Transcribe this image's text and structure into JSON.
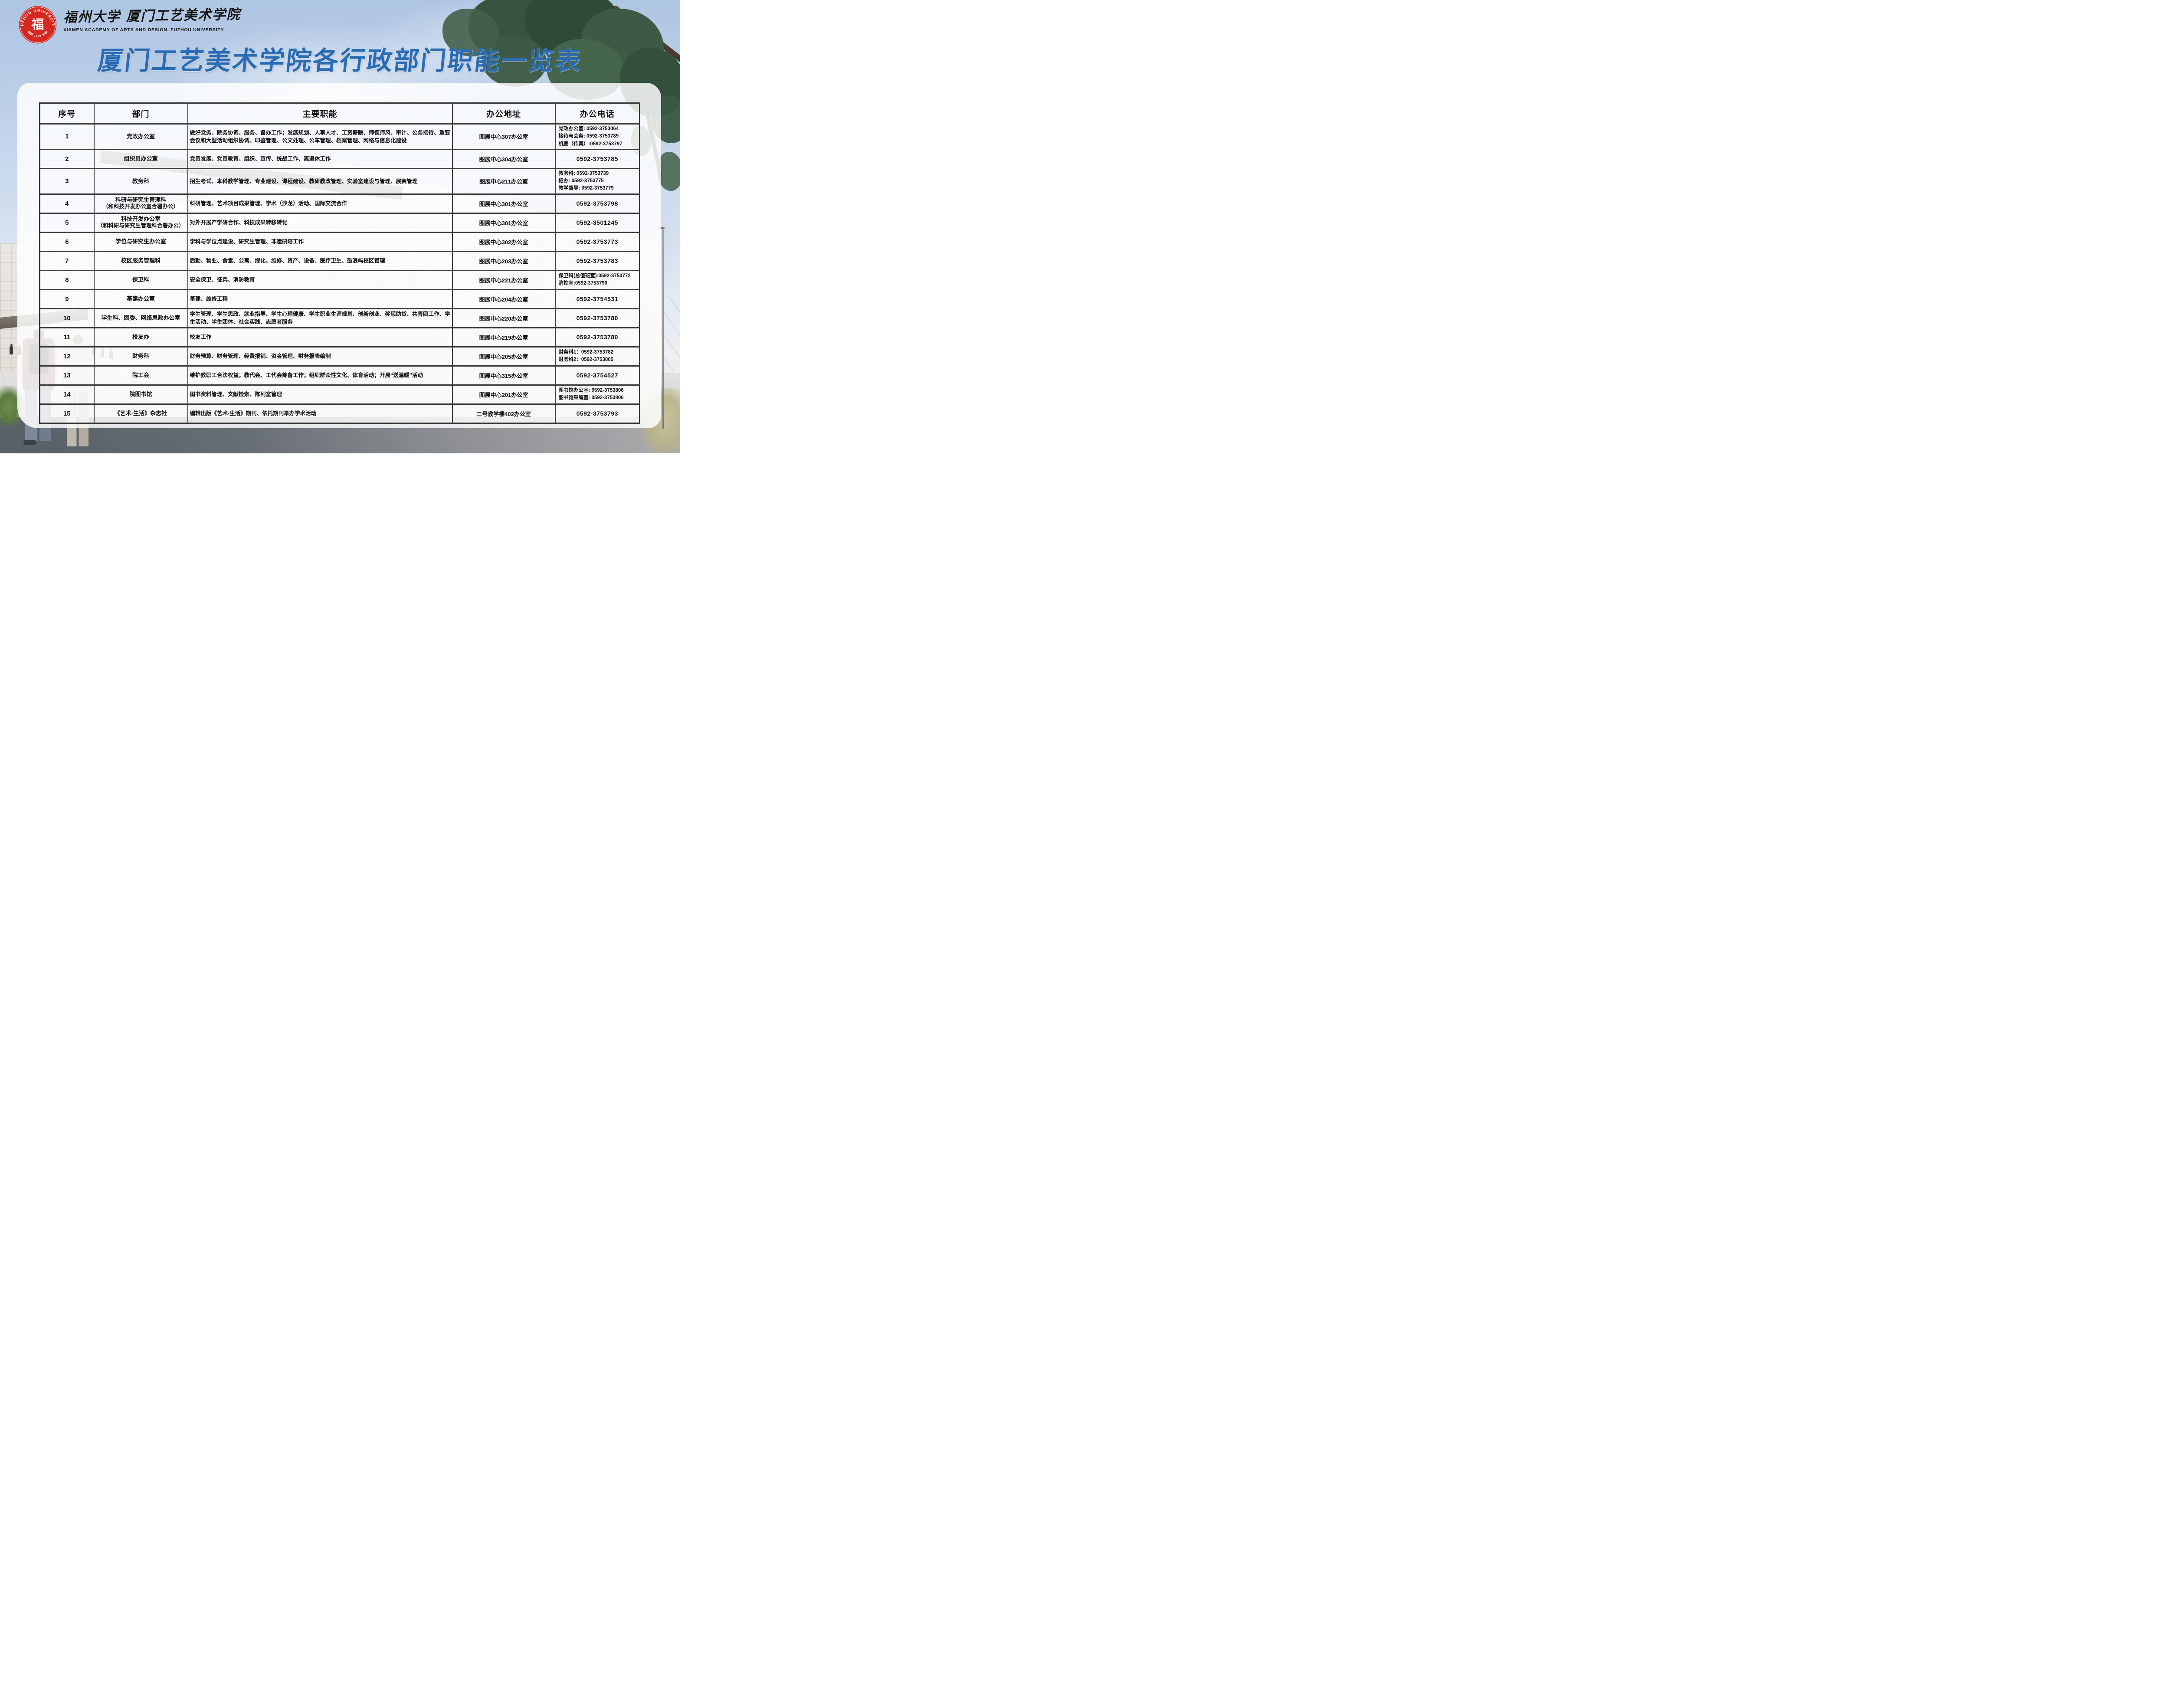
{
  "page": {
    "logo": {
      "seal_top": "FUZHOU UNIVERSITY",
      "seal_char": "福",
      "seal_bottom": "福州 1958 大学",
      "calligraphy": "福州大学 厦门工艺美术学院",
      "english": "XIAMEN ACADEMY OF ARTS AND DESIGN. FUZHOU UNIVERSITY"
    },
    "title": "厦门工艺美术学院各行政部门职能一览表",
    "colors": {
      "title_blue": "#2a6cb4",
      "seal_red": "#d6281f",
      "table_line": "#3a3a3a",
      "sky_blue": "#bccfe8",
      "tree_green": "#38543f"
    }
  },
  "table": {
    "headers": [
      "序号",
      "部门",
      "主要职能",
      "办公地址",
      "办公电话"
    ],
    "rows": [
      {
        "no": "1",
        "dept": "党政办公室",
        "functions": "做好党务、院务协调、服务、督办工作；发展规划、人事人才、工资薪酬、师德师风、审计、公务接待、重要会议和大型活动组织协调、印鉴管理、公文处理、公车管理、档案管理、网络与信息化建设",
        "address": "图展中心307办公室",
        "phones": [
          "党政办公室: 0592-3753064",
          "接待与会务: 0592-3753789",
          "机要（传真）:0592-3753797"
        ]
      },
      {
        "no": "2",
        "dept": "组织员办公室",
        "functions": "党员发展、党员教育、组织、宣传、统战工作、离退休工作",
        "address": "图展中心304办公室",
        "phones": [
          "0592-3753785"
        ]
      },
      {
        "no": "3",
        "dept": "教务科",
        "functions": "招生考试、本科教学管理、专业建设、课程建设、教研教改管理、实验室建设与管理、展赛管理",
        "address": "图展中心211办公室",
        "phones": [
          "教务科: 0592-3753739",
          "招办: 0592-3753775",
          "教学督导: 0592-3753779"
        ]
      },
      {
        "no": "4",
        "dept": "科研与研究生管理科",
        "dept_sub": "（和科技开发办公室合署办公）",
        "functions": "科研管理、艺术项目成果管理、学术（沙龙）活动、国际交流合作",
        "address": "图展中心301办公室",
        "phones": [
          "0592-3753798"
        ]
      },
      {
        "no": "5",
        "dept": "科技开发办公室",
        "dept_sub": "（和科研与研究生管理科合署办公）",
        "functions": "对外开展产学研合作、科技成果转移转化",
        "address": "图展中心301办公室",
        "phones": [
          "0592-3501245"
        ]
      },
      {
        "no": "6",
        "dept": "学位与研究生办公室",
        "functions": "学科与学位点建设、研究生管理、非遗研培工作",
        "address": "图展中心302办公室",
        "phones": [
          "0592-3753773"
        ]
      },
      {
        "no": "7",
        "dept": "校区服务管理科",
        "functions": "后勤、物业、食堂、公寓、绿化、维修、资产、设备、医疗卫生、鼓浪屿校区管理",
        "address": "图展中心203办公室",
        "phones": [
          "0592-3753783"
        ]
      },
      {
        "no": "8",
        "dept": "保卫科",
        "functions": "安全保卫、征兵、消防教育",
        "address": "图展中心221办公室",
        "phones": [
          "保卫科(总值班室):0592-3753772",
          "消控室:0592-3753790"
        ]
      },
      {
        "no": "9",
        "dept": "基建办公室",
        "functions": "基建、维修工程",
        "address": "图展中心204办公室",
        "phones": [
          "0592-3754531"
        ]
      },
      {
        "no": "10",
        "dept": "学生科、团委、网络思政办公室",
        "functions": "学生管理、学生思政、就业指导、学生心理健康、学生职业生涯规划、创新创业、奖惩助贷、共青团工作、学生活动、学生团体、社会实践、志愿者服务",
        "address": "图展中心220办公室",
        "phones": [
          "0592-3753780"
        ]
      },
      {
        "no": "11",
        "dept": "校友办",
        "functions": "校友工作",
        "address": "图展中心219办公室",
        "phones": [
          "0592-3753780"
        ]
      },
      {
        "no": "12",
        "dept": "财务科",
        "functions": "财务预算、财务管理、经费报销、资金管理、财务报表编制",
        "address": "图展中心205办公室",
        "phones": [
          "财务科1：0592-3753782",
          "财务科2：0592-3753805"
        ]
      },
      {
        "no": "13",
        "dept": "院工会",
        "functions": "维护教职工合法权益；教代会、工代会筹备工作；组织群众性文化、体育活动；开展“送温暖”活动",
        "address": "图展中心315办公室",
        "phones": [
          "0592-3754527"
        ]
      },
      {
        "no": "14",
        "dept": "院图书馆",
        "functions": "图书资料管理、文献检索、陈列室管理",
        "address": "图展中心201办公室",
        "phones": [
          "图书馆办公室: 0592-3753806",
          "图书馆采编室: 0592-3753806"
        ]
      },
      {
        "no": "15",
        "dept": "《艺术·生活》杂志社",
        "functions": "编辑出版《艺术·生活》期刊、依托期刊举办学术活动",
        "address": "二号教学楼402办公室",
        "phones": [
          "0592-3753793"
        ]
      }
    ]
  }
}
